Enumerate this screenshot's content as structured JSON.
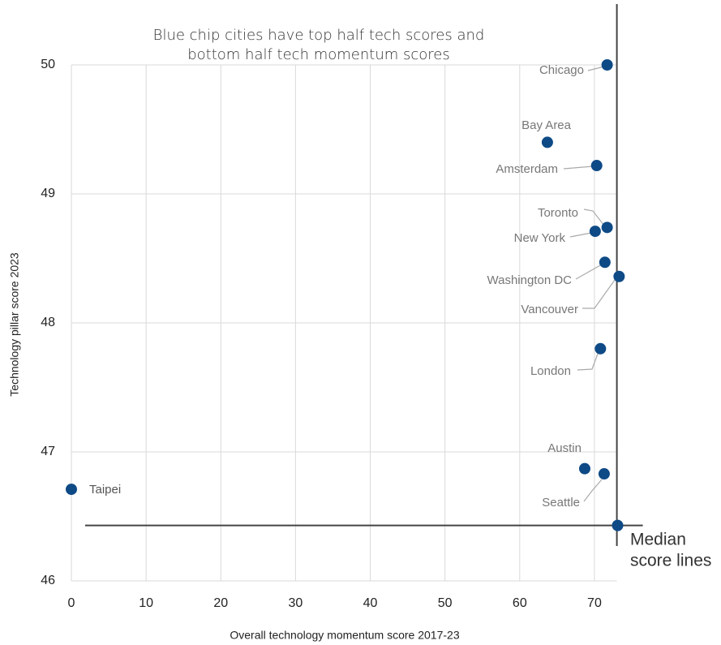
{
  "chart_data": {
    "type": "scatter",
    "title": "Blue chip cities have top half tech scores and bottom half tech momentum scores",
    "x_label": "Overall technology momentum score 2017-23",
    "y_label": "Technology pillar score 2023",
    "labels": [
      "Chicago",
      "Bay Area",
      "Amsterdam",
      "Toronto",
      "New York",
      "Washington DC",
      "Vancouver",
      "London",
      "Austin",
      "Seattle",
      "Taipei",
      null
    ],
    "x": [
      71.7,
      63.7,
      70.3,
      71.7,
      70.1,
      71.4,
      73.3,
      70.8,
      68.7,
      71.3,
      0,
      73.1
    ],
    "values": [
      50.0,
      49.4,
      49.22,
      48.74,
      48.71,
      48.47,
      48.36,
      47.8,
      46.87,
      46.83,
      46.71,
      46.43
    ],
    "color": "#0e4a86",
    "median_x": 73,
    "median_y": 46.43,
    "median_label_lines": [
      "Median",
      "score lines"
    ],
    "xlim": [
      0,
      73
    ],
    "ylim": [
      46,
      50
    ],
    "xticks": [
      0,
      10,
      20,
      30,
      40,
      50,
      60,
      70
    ],
    "yticks": [
      46,
      47,
      48,
      49,
      50
    ],
    "grid": true
  }
}
